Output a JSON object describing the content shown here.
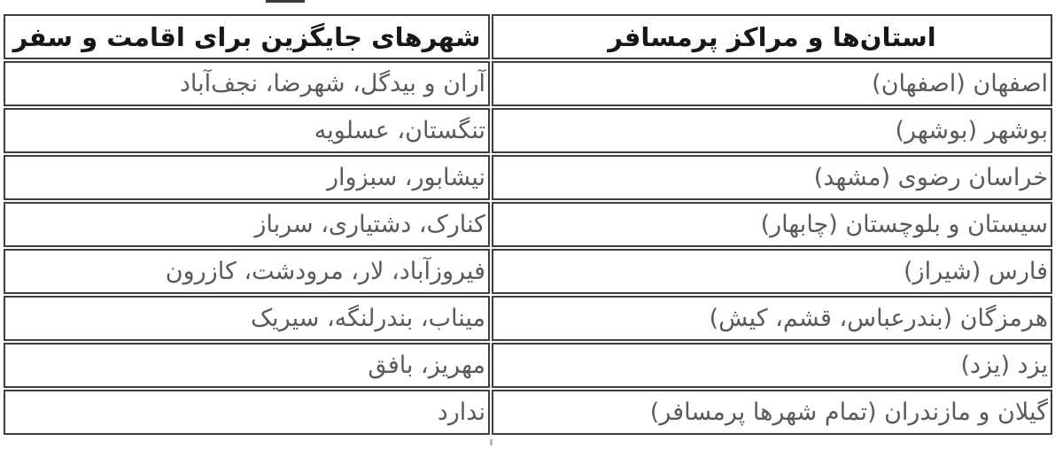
{
  "table": {
    "direction": "rtl",
    "headers": {
      "provinces": "استان‌ها و مراکز پرمسافر",
      "alternatives": "شهرهای جایگزین برای اقامت و سفر"
    },
    "rows": [
      {
        "province": "اصفهان (اصفهان)",
        "alternatives": "آران و بیدگل، شهرضا، نجف‌آباد"
      },
      {
        "province": "بوشهر (بوشهر)",
        "alternatives": "تنگستان، عسلویه"
      },
      {
        "province": "خراسان رضوی (مشهد)",
        "alternatives": "نیشابور، سبزوار"
      },
      {
        "province": "سیستان و بلوچستان (چابهار)",
        "alternatives": "کنارک، دشتیاری، سرباز"
      },
      {
        "province": "فارس (شیراز)",
        "alternatives": "فیروزآباد، لار، مرودشت، کازرون"
      },
      {
        "province": "هرمزگان (بندرعباس، قشم، کیش)",
        "alternatives": "میناب، بندرلنگه، سیریک"
      },
      {
        "province": "یزد (یزد)",
        "alternatives": "مهریز، بافق"
      },
      {
        "province": "گیلان و مازندران (تمام شهرها پرمسافر)",
        "alternatives": "ندارد"
      }
    ],
    "colors": {
      "border": "#3f3f3f",
      "header_text": "#171717",
      "cell_text": "#5a5a5a",
      "background": "#ffffff"
    }
  }
}
